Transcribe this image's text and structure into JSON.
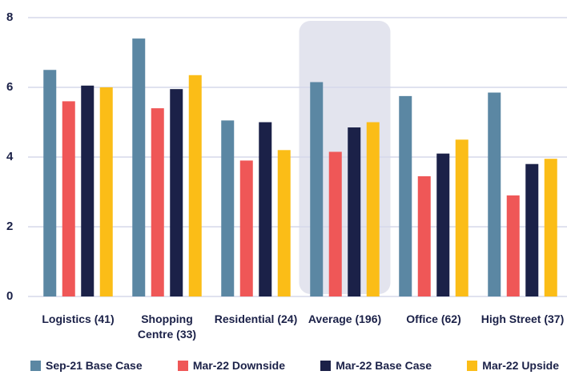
{
  "chart_data": {
    "type": "bar",
    "categories": [
      "Logistics (41)",
      "Shopping Centre (33)",
      "Residential (24)",
      "Average (196)",
      "Office (62)",
      "High Street (37)"
    ],
    "series": [
      {
        "name": "Sep-21 Base Case",
        "color": "#5b87a3",
        "values": [
          6.5,
          7.4,
          5.05,
          6.15,
          5.75,
          5.85
        ]
      },
      {
        "name": "Mar-22 Downside",
        "color": "#ef5757",
        "values": [
          5.6,
          5.4,
          3.9,
          4.15,
          3.45,
          2.9
        ]
      },
      {
        "name": "Mar-22 Base Case",
        "color": "#1b2148",
        "values": [
          6.05,
          5.95,
          5.0,
          4.85,
          4.1,
          3.8
        ]
      },
      {
        "name": "Mar-22 Upside",
        "color": "#fbbd17",
        "values": [
          6.0,
          6.35,
          4.2,
          5.0,
          4.5,
          3.95
        ]
      }
    ],
    "ylim": [
      0,
      8
    ],
    "yticks": [
      0,
      2,
      4,
      6,
      8
    ],
    "grid": true,
    "highlight": 3,
    "legend": "bottom"
  }
}
